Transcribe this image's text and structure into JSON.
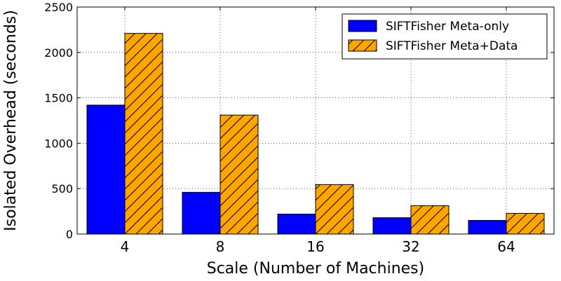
{
  "chart_data": {
    "type": "bar",
    "title": "",
    "xlabel": "Scale (Number of Machines)",
    "ylabel": "Isolated Overhead (seconds)",
    "categories": [
      "4",
      "8",
      "16",
      "32",
      "64"
    ],
    "ylim": [
      0,
      2500
    ],
    "yticks": [
      0,
      500,
      1000,
      1500,
      2000,
      2500
    ],
    "grid": true,
    "legend_position": "top-right",
    "series": [
      {
        "name": "SIFTFisher Meta-only",
        "values": [
          1420,
          460,
          220,
          180,
          150
        ],
        "color": "#0000ff",
        "pattern": "solid"
      },
      {
        "name": "SIFTFisher Meta+Data",
        "values": [
          2210,
          1310,
          545,
          312,
          228
        ],
        "color": "#ffa500",
        "pattern": "hatch"
      }
    ]
  }
}
